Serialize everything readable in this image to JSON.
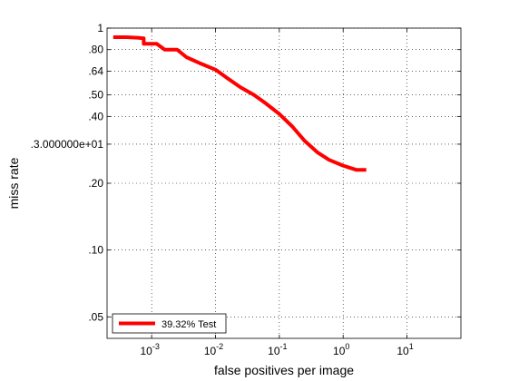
{
  "chart_data": {
    "type": "line",
    "title": "",
    "xlabel": "false positives per image",
    "ylabel": "miss rate",
    "x_scale": "log",
    "y_scale": "log",
    "xlim": [
      0.0002,
      70
    ],
    "ylim": [
      0.04,
      1
    ],
    "grid": true,
    "legend_position": "bottom-left",
    "x_ticks": [
      {
        "value": 0.001,
        "base": "10",
        "exp": "-3"
      },
      {
        "value": 0.01,
        "base": "10",
        "exp": "-2"
      },
      {
        "value": 0.1,
        "base": "10",
        "exp": "-1"
      },
      {
        "value": 1,
        "base": "10",
        "exp": "0"
      },
      {
        "value": 10,
        "base": "10",
        "exp": "1"
      }
    ],
    "y_ticks": [
      {
        "value": 1,
        "label": "1"
      },
      {
        "value": 0.8,
        "label": ".80"
      },
      {
        "value": 0.64,
        "label": ".64"
      },
      {
        "value": 0.5,
        "label": ".50"
      },
      {
        "value": 0.4,
        "label": ".40"
      },
      {
        "value": 0.3,
        "label": ".3.000000e+01"
      },
      {
        "value": 0.2,
        "label": ".20"
      },
      {
        "value": 0.1,
        "label": ".10"
      },
      {
        "value": 0.05,
        "label": ".05"
      }
    ],
    "series": [
      {
        "name": "39.32% Test",
        "color": "#ff0000",
        "x": [
          0.00025,
          0.0004,
          0.0006,
          0.00075,
          0.00075,
          0.0012,
          0.0016,
          0.0025,
          0.0035,
          0.006,
          0.01,
          0.016,
          0.025,
          0.04,
          0.06,
          0.1,
          0.16,
          0.25,
          0.4,
          0.6,
          1.0,
          1.6,
          2.3
        ],
        "y": [
          0.91,
          0.91,
          0.905,
          0.9,
          0.85,
          0.85,
          0.8,
          0.8,
          0.74,
          0.69,
          0.65,
          0.59,
          0.54,
          0.5,
          0.46,
          0.41,
          0.36,
          0.31,
          0.275,
          0.255,
          0.24,
          0.23,
          0.23
        ]
      }
    ]
  }
}
